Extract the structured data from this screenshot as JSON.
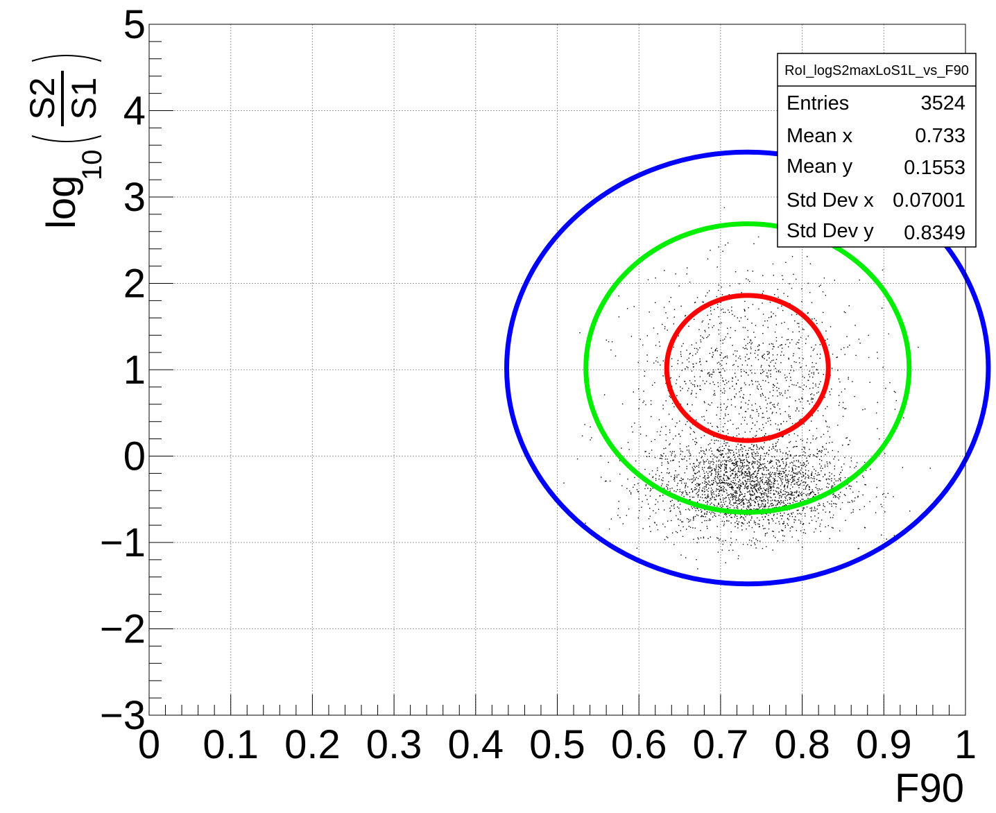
{
  "chart_data": {
    "type": "scatter",
    "title": "",
    "xlabel": "F90",
    "ylabel": {
      "prefix": "log",
      "subscript": "10",
      "numerator": "S2",
      "denominator": "S1"
    },
    "xlim": [
      0,
      1
    ],
    "ylim": [
      -3,
      5
    ],
    "x_ticks": [
      "0",
      "0.1",
      "0.2",
      "0.3",
      "0.4",
      "0.5",
      "0.6",
      "0.7",
      "0.8",
      "0.9",
      "1"
    ],
    "y_ticks": [
      "−3",
      "−2",
      "−1",
      "0",
      "1",
      "2",
      "3",
      "4",
      "5"
    ],
    "grid": true,
    "point_color": "#000000",
    "clusters": [
      {
        "center": [
          0.733,
          -0.35
        ],
        "spread": [
          0.06,
          0.28
        ],
        "count": 2400
      },
      {
        "center": [
          0.733,
          0.9
        ],
        "spread": [
          0.07,
          0.6
        ],
        "count": 1124
      }
    ],
    "ellipses": [
      {
        "color": "#0000ff",
        "center": [
          0.733,
          1.02
        ],
        "radii": [
          0.295,
          2.5
        ]
      },
      {
        "color": "#00ee00",
        "center": [
          0.733,
          1.02
        ],
        "radii": [
          0.198,
          1.67
        ]
      },
      {
        "color": "#ff0000",
        "center": [
          0.733,
          1.02
        ],
        "radii": [
          0.099,
          0.84
        ]
      }
    ],
    "stats_box": {
      "title": "RoI_logS2maxLoS1L_vs_F90",
      "rows": [
        {
          "label": "Entries",
          "value": "3524"
        },
        {
          "label": "Mean x",
          "value": "0.733"
        },
        {
          "label": "Mean y",
          "value": "0.1553"
        },
        {
          "label": "Std Dev x",
          "value": "0.07001"
        },
        {
          "label": "Std Dev y",
          "value": "0.8349"
        }
      ]
    }
  }
}
